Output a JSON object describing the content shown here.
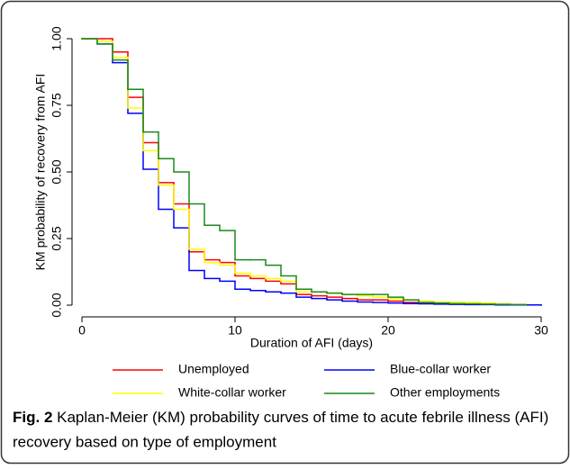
{
  "chart_data": {
    "type": "line",
    "step": "post",
    "xlabel": "Duration of AFI (days)",
    "ylabel": "KM probability of recovery from AFI",
    "x": [
      0,
      1,
      2,
      3,
      4,
      5,
      6,
      7,
      8,
      9,
      10,
      11,
      12,
      13,
      14,
      15,
      16,
      17,
      18,
      19,
      20,
      21,
      22,
      23,
      24,
      25,
      26,
      27,
      28,
      29,
      30
    ],
    "xlim": [
      0,
      30
    ],
    "xticks": [
      0,
      10,
      20,
      30
    ],
    "ylim": [
      0,
      1
    ],
    "yticks": [
      {
        "value": 0,
        "label": "0.00"
      },
      {
        "value": 0.25,
        "label": "0.25"
      },
      {
        "value": 0.5,
        "label": "0.50"
      },
      {
        "value": 0.75,
        "label": "0.75"
      },
      {
        "value": 1,
        "label": "1.00"
      }
    ],
    "series": [
      {
        "name": "Unemployed",
        "color": "#ff0000",
        "values": [
          1,
          1,
          0.95,
          0.78,
          0.61,
          0.46,
          0.38,
          0.2,
          0.17,
          0.16,
          0.11,
          0.1,
          0.09,
          0.08,
          0.04,
          0.035,
          0.03,
          0.025,
          0.02,
          0.02,
          0.015,
          0.01,
          0.008,
          0.006,
          0.005,
          0.004,
          0.003,
          0.002,
          0.001,
          0,
          null
        ]
      },
      {
        "name": "Blue-collar worker",
        "color": "#0000ff",
        "values": [
          1,
          0.98,
          0.91,
          0.72,
          0.51,
          0.36,
          0.29,
          0.13,
          0.1,
          0.09,
          0.06,
          0.055,
          0.05,
          0.045,
          0.03,
          0.025,
          0.02,
          0.015,
          0.012,
          0.01,
          0.008,
          0.006,
          0.005,
          0.004,
          0.003,
          0.002,
          0.002,
          0.001,
          0.001,
          0.001,
          0
        ]
      },
      {
        "name": "White-collar worker",
        "color": "#ffff00",
        "values": [
          1,
          0.99,
          0.93,
          0.74,
          0.58,
          0.45,
          0.36,
          0.21,
          0.16,
          0.15,
          0.12,
          0.11,
          0.1,
          0.09,
          0.05,
          0.05,
          0.045,
          0.04,
          0.035,
          0.03,
          0.025,
          0.02,
          0.015,
          0.012,
          0.01,
          0.01,
          0.008,
          0.005,
          0.003,
          0,
          null
        ]
      },
      {
        "name": "Other employments",
        "color": "#1a8a1a",
        "values": [
          1,
          0.98,
          0.92,
          0.81,
          0.65,
          0.55,
          0.5,
          0.38,
          0.3,
          0.28,
          0.17,
          0.17,
          0.15,
          0.11,
          0.06,
          0.05,
          0.045,
          0.04,
          0.04,
          0.04,
          0.03,
          0.02,
          0.01,
          0.008,
          0.006,
          0.005,
          0.004,
          0.003,
          0.002,
          0.001,
          null
        ]
      }
    ]
  },
  "caption": {
    "label": "Fig. 2",
    "text": "Kaplan-Meier (KM) probability curves of time to acute febrile illness (AFI) recovery based on type of employment"
  }
}
